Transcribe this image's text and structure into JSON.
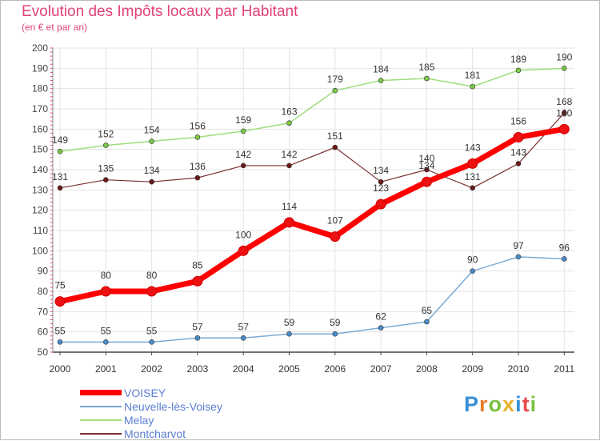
{
  "header": {
    "title": "Evolution des Impôts locaux par Habitant",
    "subtitle": "(en € et par an)"
  },
  "logo": {
    "text": [
      "P",
      "r",
      "o",
      "x",
      "i",
      "t",
      "i"
    ],
    "colors": [
      "#3a8fd6",
      "#e87d2a",
      "#7bc142",
      "#e8b32a",
      "#3a8fd6",
      "#e84a4a",
      "#7bc142"
    ]
  },
  "chart_data": {
    "type": "line",
    "title": "Evolution des Impôts locaux par Habitant",
    "subtitle": "(en € et par an)",
    "x": [
      "2000",
      "2001",
      "2002",
      "2003",
      "2004",
      "2005",
      "2006",
      "2007",
      "2008",
      "2009",
      "2010",
      "2011"
    ],
    "ylim": [
      50,
      200
    ],
    "yticks": [
      50,
      60,
      70,
      80,
      90,
      100,
      110,
      120,
      130,
      140,
      150,
      160,
      170,
      180,
      190,
      200
    ],
    "grid": true,
    "legend_position": "bottom-left",
    "series": [
      {
        "name": "VOISEY",
        "values": [
          75,
          80,
          80,
          85,
          100,
          114,
          107,
          123,
          134,
          143,
          156,
          160
        ],
        "color": "#ff0000",
        "dot_color": "#ee1111",
        "width": 7,
        "radius": 6,
        "label_dy": -16
      },
      {
        "name": "Neuvelle-lès-Voisey",
        "values": [
          55,
          55,
          55,
          57,
          57,
          59,
          59,
          62,
          65,
          90,
          97,
          96
        ],
        "color": "#7aaad6",
        "dot_color": "#4a8cc9",
        "width": 1.5,
        "radius": 3,
        "label_dy": -10
      },
      {
        "name": "Melay",
        "values": [
          149,
          152,
          154,
          156,
          159,
          163,
          179,
          184,
          185,
          181,
          189,
          190
        ],
        "color": "#9edc7c",
        "dot_color": "#7ac846",
        "width": 1.5,
        "radius": 3,
        "label_dy": -10
      },
      {
        "name": "Montcharvot",
        "values": [
          131,
          135,
          134,
          136,
          142,
          142,
          151,
          134,
          140,
          131,
          143,
          168
        ],
        "color": "#7a3030",
        "dot_color": "#6a1a1a",
        "width": 1.2,
        "radius": 3,
        "label_dy": -10
      }
    ]
  }
}
